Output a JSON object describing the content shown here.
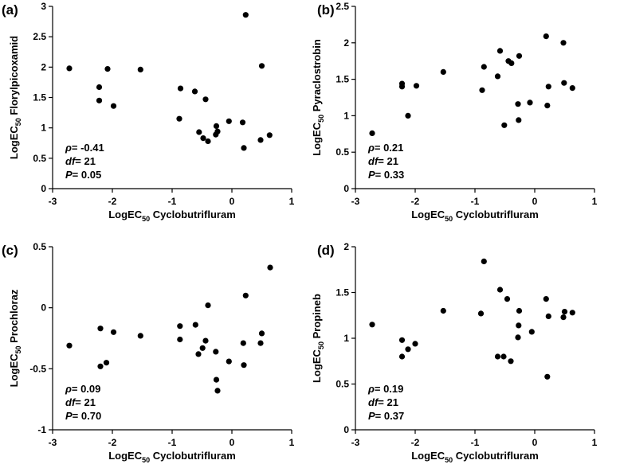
{
  "figure_layout": "2x2 grid",
  "chart_data": [
    {
      "type": "scatter",
      "panel_label": "(a)",
      "xlabel_main": "LogEC",
      "xlabel_sub": "50",
      "xlabel_rest": " Cyclobutrifluram",
      "ylabel_main": "LogEC",
      "ylabel_sub": "50",
      "ylabel_rest": " Florylpicoxamid",
      "xlim": [
        -3,
        1
      ],
      "ylim": [
        0,
        3
      ],
      "xticks": [
        "-3",
        "-2",
        "-1",
        "0",
        "1"
      ],
      "yticks": [
        "0",
        "0.5",
        "1",
        "1.5",
        "2",
        "2.5",
        "3"
      ],
      "ytick_values": [
        0,
        0.5,
        1,
        1.5,
        2,
        2.5,
        3
      ],
      "xtick_values": [
        -3,
        -2,
        -1,
        0,
        1
      ],
      "stats": {
        "rho_symbol": "ρ",
        "rho_value": "= -0.41",
        "df_label": "df",
        "df_value": "= 21",
        "p_label": "P",
        "p_value": "= 0.05"
      },
      "points": [
        [
          -2.72,
          1.98
        ],
        [
          -2.22,
          1.67
        ],
        [
          -2.22,
          1.45
        ],
        [
          -2.08,
          1.97
        ],
        [
          -1.98,
          1.36
        ],
        [
          -1.53,
          1.96
        ],
        [
          -0.88,
          1.15
        ],
        [
          -0.86,
          1.65
        ],
        [
          -0.62,
          1.6
        ],
        [
          -0.55,
          0.93
        ],
        [
          -0.48,
          0.83
        ],
        [
          -0.44,
          1.47
        ],
        [
          -0.4,
          0.78
        ],
        [
          -0.27,
          0.89
        ],
        [
          -0.26,
          1.03
        ],
        [
          -0.24,
          0.94
        ],
        [
          -0.05,
          1.11
        ],
        [
          0.18,
          1.09
        ],
        [
          0.2,
          0.67
        ],
        [
          0.23,
          2.86
        ],
        [
          0.48,
          0.8
        ],
        [
          0.5,
          2.02
        ],
        [
          0.63,
          0.88
        ]
      ]
    },
    {
      "type": "scatter",
      "panel_label": "(b)",
      "xlabel_main": "LogEC",
      "xlabel_sub": "50",
      "xlabel_rest": " Cyclobutrifluram",
      "ylabel_main": "LogEC",
      "ylabel_sub": "50",
      "ylabel_rest": " Pyraclostrobin",
      "xlim": [
        -3,
        1
      ],
      "ylim": [
        0,
        2.5
      ],
      "xticks": [
        "-3",
        "-2",
        "-1",
        "0",
        "1"
      ],
      "yticks": [
        "0",
        "0.5",
        "1",
        "1.5",
        "2",
        "2.5"
      ],
      "ytick_values": [
        0,
        0.5,
        1,
        1.5,
        2,
        2.5
      ],
      "xtick_values": [
        -3,
        -2,
        -1,
        0,
        1
      ],
      "stats": {
        "rho_symbol": "ρ",
        "rho_value": "= 0.21",
        "df_label": "df",
        "df_value": "= 21",
        "p_label": "P",
        "p_value": "= 0.33"
      },
      "points": [
        [
          -2.72,
          0.76
        ],
        [
          -2.22,
          1.44
        ],
        [
          -2.22,
          1.4
        ],
        [
          -2.12,
          1.0
        ],
        [
          -1.98,
          1.41
        ],
        [
          -1.53,
          1.6
        ],
        [
          -0.88,
          1.35
        ],
        [
          -0.85,
          1.67
        ],
        [
          -0.62,
          1.54
        ],
        [
          -0.58,
          1.89
        ],
        [
          -0.51,
          0.87
        ],
        [
          -0.44,
          1.75
        ],
        [
          -0.39,
          1.72
        ],
        [
          -0.28,
          1.16
        ],
        [
          -0.27,
          0.94
        ],
        [
          -0.26,
          1.82
        ],
        [
          -0.08,
          1.18
        ],
        [
          0.19,
          2.09
        ],
        [
          0.21,
          1.14
        ],
        [
          0.23,
          1.4
        ],
        [
          0.48,
          2.0
        ],
        [
          0.49,
          1.45
        ],
        [
          0.63,
          1.38
        ]
      ]
    },
    {
      "type": "scatter",
      "panel_label": "(c)",
      "xlabel_main": "LogEC",
      "xlabel_sub": "50",
      "xlabel_rest": " Cyclobutrifluram",
      "ylabel_main": "LogEC",
      "ylabel_sub": "50",
      "ylabel_rest": " Prochloraz",
      "xlim": [
        -3,
        1
      ],
      "ylim": [
        -1,
        0.5
      ],
      "xticks": [
        "-3",
        "-2",
        "-1",
        "0",
        "1"
      ],
      "yticks": [
        "-1",
        "-0.5",
        "0",
        "0.5"
      ],
      "ytick_values": [
        -1,
        -0.5,
        0,
        0.5
      ],
      "xtick_values": [
        -3,
        -2,
        -1,
        0,
        1
      ],
      "stats": {
        "rho_symbol": "ρ",
        "rho_value": "= 0.09",
        "df_label": "df",
        "df_value": "= 21",
        "p_label": "P",
        "p_value": "= 0.70"
      },
      "points": [
        [
          -2.72,
          -0.31
        ],
        [
          -2.2,
          -0.17
        ],
        [
          -2.2,
          -0.48
        ],
        [
          -2.1,
          -0.45
        ],
        [
          -1.98,
          -0.2
        ],
        [
          -1.53,
          -0.23
        ],
        [
          -0.87,
          -0.15
        ],
        [
          -0.87,
          -0.26
        ],
        [
          -0.61,
          -0.14
        ],
        [
          -0.56,
          -0.38
        ],
        [
          -0.49,
          -0.33
        ],
        [
          -0.44,
          -0.27
        ],
        [
          -0.4,
          0.02
        ],
        [
          -0.27,
          -0.36
        ],
        [
          -0.26,
          -0.59
        ],
        [
          -0.24,
          -0.68
        ],
        [
          -0.05,
          -0.44
        ],
        [
          0.19,
          -0.29
        ],
        [
          0.2,
          -0.47
        ],
        [
          0.23,
          0.1
        ],
        [
          0.48,
          -0.29
        ],
        [
          0.5,
          -0.21
        ],
        [
          0.64,
          0.33
        ]
      ]
    },
    {
      "type": "scatter",
      "panel_label": "(d)",
      "xlabel_main": "LogEC",
      "xlabel_sub": "50",
      "xlabel_rest": " Cyclobutrifluram",
      "ylabel_main": "LogEC",
      "ylabel_sub": "50",
      "ylabel_rest": " Propineb",
      "xlim": [
        -3,
        1
      ],
      "ylim": [
        0,
        2
      ],
      "xticks": [
        "-3",
        "-2",
        "-1",
        "0",
        "1"
      ],
      "yticks": [
        "0",
        "0.5",
        "1",
        "1.5",
        "2"
      ],
      "ytick_values": [
        0,
        0.5,
        1,
        1.5,
        2
      ],
      "xtick_values": [
        -3,
        -2,
        -1,
        0,
        1
      ],
      "stats": {
        "rho_symbol": "ρ",
        "rho_value": "= 0.19",
        "df_label": "df",
        "df_value": "= 21",
        "p_label": "P",
        "p_value": "= 0.37"
      },
      "points": [
        [
          -2.72,
          1.15
        ],
        [
          -2.22,
          0.98
        ],
        [
          -2.22,
          0.8
        ],
        [
          -2.12,
          0.88
        ],
        [
          -2.0,
          0.94
        ],
        [
          -1.53,
          1.3
        ],
        [
          -0.9,
          1.27
        ],
        [
          -0.85,
          1.84
        ],
        [
          -0.62,
          0.8
        ],
        [
          -0.58,
          1.53
        ],
        [
          -0.52,
          0.8
        ],
        [
          -0.46,
          1.43
        ],
        [
          -0.4,
          0.75
        ],
        [
          -0.28,
          1.01
        ],
        [
          -0.27,
          1.14
        ],
        [
          -0.26,
          1.3
        ],
        [
          -0.05,
          1.07
        ],
        [
          0.19,
          1.43
        ],
        [
          0.21,
          0.58
        ],
        [
          0.23,
          1.24
        ],
        [
          0.48,
          1.23
        ],
        [
          0.5,
          1.29
        ],
        [
          0.63,
          1.28
        ]
      ]
    }
  ]
}
